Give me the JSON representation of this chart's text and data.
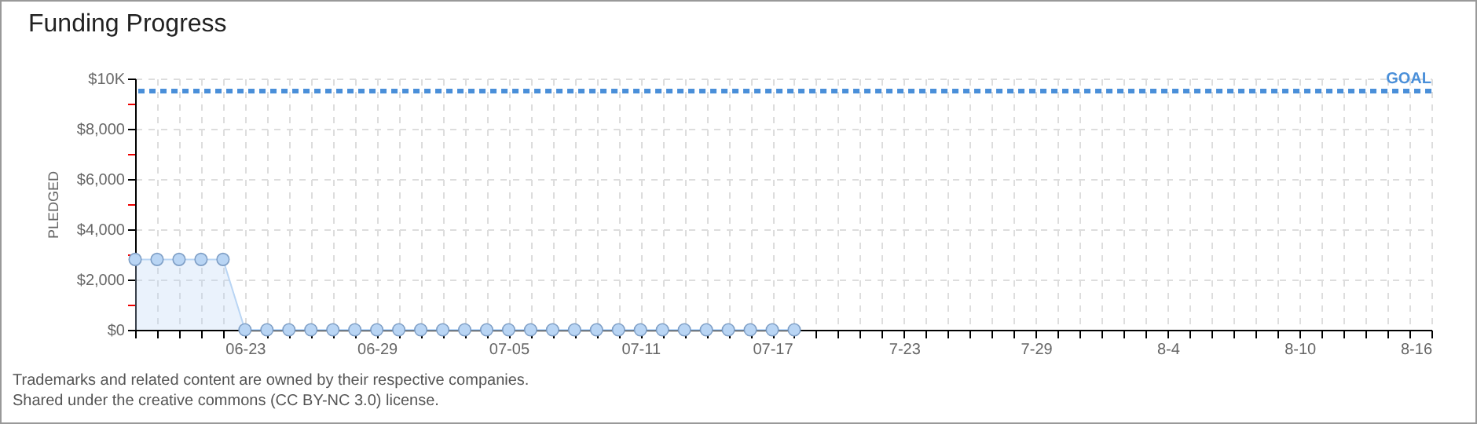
{
  "chart_data": {
    "type": "area",
    "title": "Funding Progress",
    "ylabel": "PLEDGED",
    "x": [
      "--06-18",
      "--06-19",
      "--06-20",
      "--06-21",
      "--06-22",
      "--06-23",
      "--06-24",
      "--06-25",
      "--06-26",
      "--06-27",
      "--06-28",
      "--06-29",
      "--06-30",
      "--07-01",
      "--07-02",
      "--07-03",
      "--07-04",
      "--07-05",
      "--07-06",
      "--07-07",
      "--07-08",
      "--07-09",
      "--07-10",
      "--07-11",
      "--07-12",
      "--07-13",
      "--07-14",
      "--07-15",
      "--07-16",
      "--07-17",
      "--07-18"
    ],
    "series": [
      {
        "color": "#b9d5f4",
        "values": [
          2800,
          2800,
          2800,
          2800,
          2800,
          0,
          0,
          0,
          0,
          0,
          0,
          0,
          0,
          0,
          0,
          0,
          0,
          0,
          0,
          0,
          0,
          0,
          0,
          0,
          0,
          0,
          0,
          0,
          0,
          0,
          0
        ]
      }
    ],
    "marker": "circle",
    "line_style": "solid",
    "grid": true,
    "ylim": [
      0,
      10000
    ],
    "yticks": [
      {
        "value": 0,
        "label": "$0"
      },
      {
        "value": 1000,
        "label": null
      },
      {
        "value": 2000,
        "label": "$2,000"
      },
      {
        "value": 3000,
        "label": null
      },
      {
        "value": 4000,
        "label": "$4,000"
      },
      {
        "value": 5000,
        "label": null
      },
      {
        "value": 6000,
        "label": "$6,000"
      },
      {
        "value": 7000,
        "label": null
      },
      {
        "value": 8000,
        "label": "$8,000"
      },
      {
        "value": 9000,
        "label": null
      },
      {
        "value": 10000,
        "label": "$10K"
      }
    ],
    "xlim": [
      "--06-18",
      "--08-16"
    ],
    "xticks": [
      {
        "value": "--06-18",
        "label": null
      },
      {
        "value": "--06-19",
        "label": null
      },
      {
        "value": "--06-20",
        "label": null
      },
      {
        "value": "--06-21",
        "label": null
      },
      {
        "value": "--06-22",
        "label": null
      },
      {
        "value": "--06-23",
        "label": "06-23"
      },
      {
        "value": "--06-24",
        "label": null
      },
      {
        "value": "--06-25",
        "label": null
      },
      {
        "value": "--06-26",
        "label": null
      },
      {
        "value": "--06-27",
        "label": null
      },
      {
        "value": "--06-28",
        "label": null
      },
      {
        "value": "--06-29",
        "label": "06-29"
      },
      {
        "value": "--06-30",
        "label": null
      },
      {
        "value": "--07-01",
        "label": null
      },
      {
        "value": "--07-02",
        "label": null
      },
      {
        "value": "--07-03",
        "label": null
      },
      {
        "value": "--07-04",
        "label": null
      },
      {
        "value": "--07-05",
        "label": "07-05"
      },
      {
        "value": "--07-06",
        "label": null
      },
      {
        "value": "--07-07",
        "label": null
      },
      {
        "value": "--07-08",
        "label": null
      },
      {
        "value": "--07-09",
        "label": null
      },
      {
        "value": "--07-10",
        "label": null
      },
      {
        "value": "--07-11",
        "label": "07-11"
      },
      {
        "value": "--07-12",
        "label": null
      },
      {
        "value": "--07-13",
        "label": null
      },
      {
        "value": "--07-14",
        "label": null
      },
      {
        "value": "--07-15",
        "label": null
      },
      {
        "value": "--07-16",
        "label": null
      },
      {
        "value": "--07-17",
        "label": "07-17"
      },
      {
        "value": "--07-18",
        "label": null
      },
      {
        "value": "--07-19",
        "label": null
      },
      {
        "value": "--07-20",
        "label": null
      },
      {
        "value": "--07-21",
        "label": null
      },
      {
        "value": "--07-22",
        "label": null
      },
      {
        "value": "--07-23",
        "label": "7-23"
      },
      {
        "value": "--07-24",
        "label": null
      },
      {
        "value": "--07-25",
        "label": null
      },
      {
        "value": "--07-26",
        "label": null
      },
      {
        "value": "--07-27",
        "label": null
      },
      {
        "value": "--07-28",
        "label": null
      },
      {
        "value": "--07-29",
        "label": "7-29"
      },
      {
        "value": "--07-30",
        "label": null
      },
      {
        "value": "--07-31",
        "label": null
      },
      {
        "value": "--08-01",
        "label": null
      },
      {
        "value": "--08-02",
        "label": null
      },
      {
        "value": "--08-03",
        "label": null
      },
      {
        "value": "--08-04",
        "label": "8-4"
      },
      {
        "value": "--08-05",
        "label": null
      },
      {
        "value": "--08-06",
        "label": null
      },
      {
        "value": "--08-07",
        "label": null
      },
      {
        "value": "--08-08",
        "label": null
      },
      {
        "value": "--08-09",
        "label": null
      },
      {
        "value": "--08-10",
        "label": "8-10"
      },
      {
        "value": "--08-11",
        "label": null
      },
      {
        "value": "--08-12",
        "label": null
      },
      {
        "value": "--08-13",
        "label": null
      },
      {
        "value": "--08-14",
        "label": null
      },
      {
        "value": "--08-15",
        "label": null
      },
      {
        "value": "--08-16",
        "label": "8-16"
      }
    ],
    "ref_lines": [
      {
        "axis": "y",
        "value": 9500,
        "label": "GOAL",
        "color": "#4a8fd9",
        "line_style": "dashed"
      }
    ],
    "annotations": [
      "Trademarks and related content are owned by their respective companies.",
      "Shared under the creative commons (CC BY-NC 3.0) license."
    ]
  }
}
